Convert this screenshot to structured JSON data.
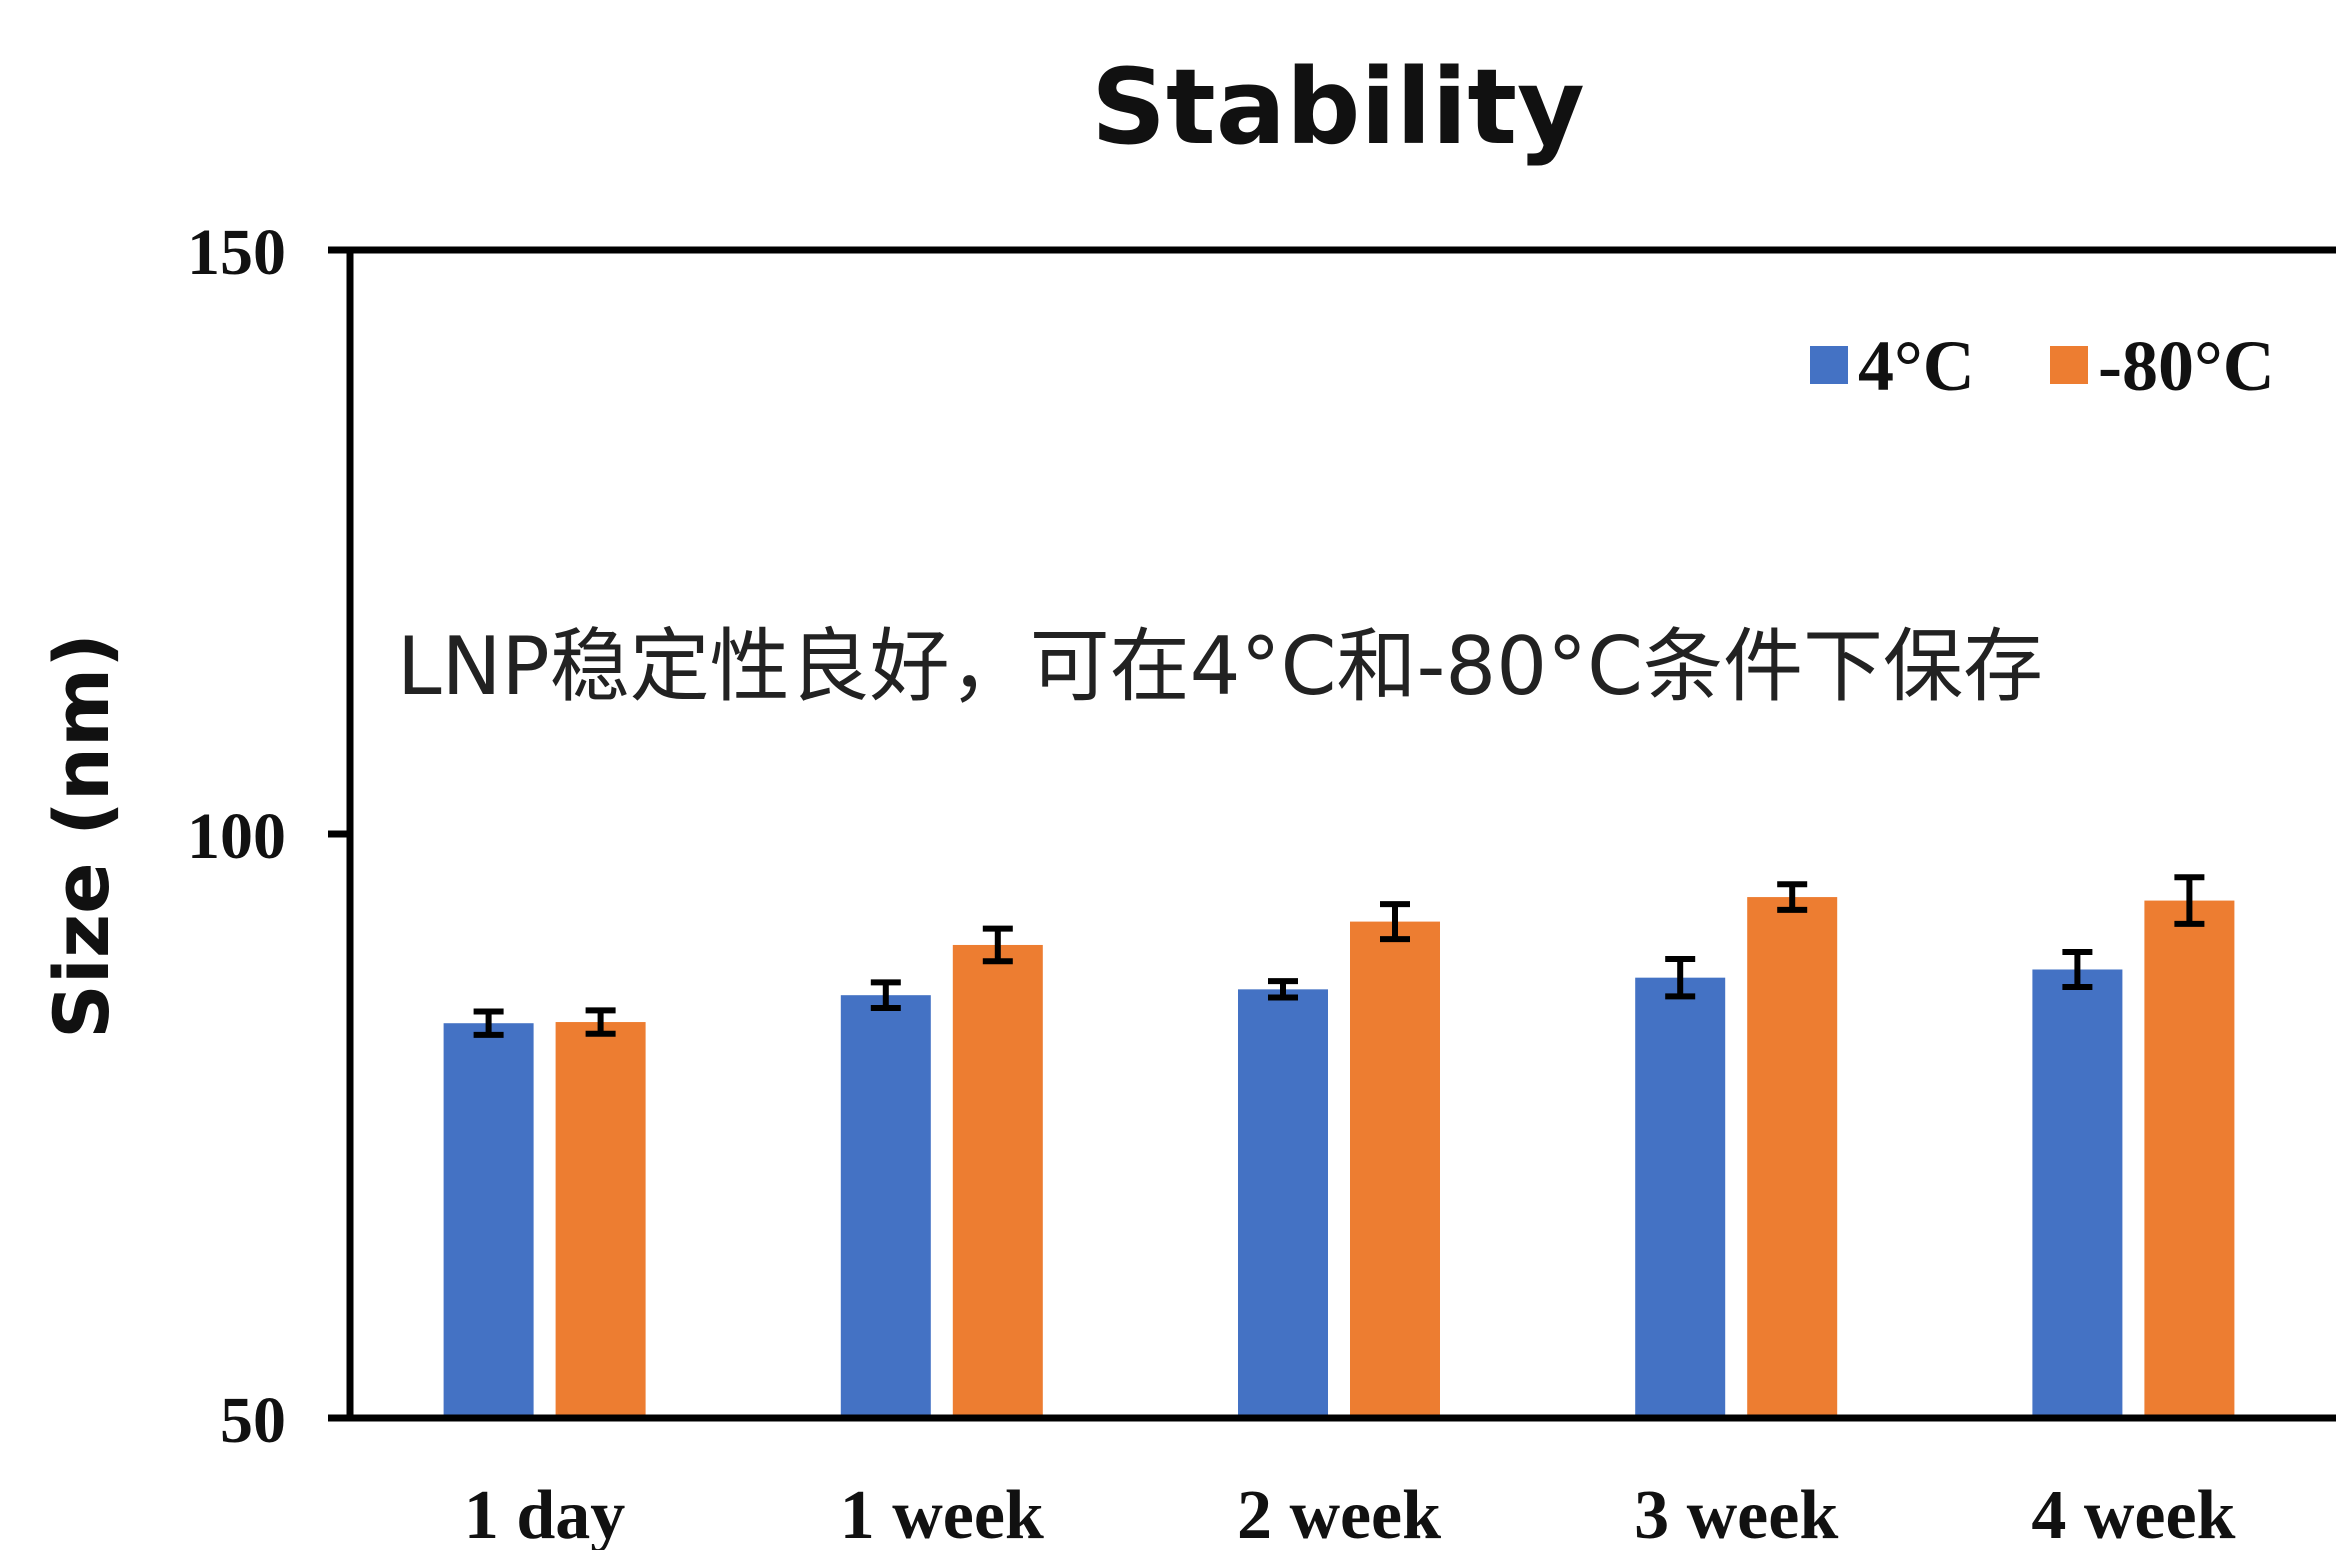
{
  "chart_data": {
    "type": "bar",
    "title": "Stability",
    "xlabel": "",
    "ylabel": "Size (nm)",
    "ylim": [
      50,
      150
    ],
    "yticks": [
      50,
      100,
      150
    ],
    "grid": false,
    "legend_position": "top-right",
    "categories": [
      "1 day",
      "1 week",
      "2 week",
      "3 week",
      "4 week"
    ],
    "series": [
      {
        "name": "4°C",
        "color": "#4472c4",
        "values": [
          83.8,
          86.2,
          86.7,
          87.7,
          88.4
        ],
        "errors": [
          1.0,
          1.1,
          0.7,
          1.6,
          1.5
        ]
      },
      {
        "name": "-80°C",
        "color": "#ed7d31",
        "values": [
          83.9,
          90.5,
          92.5,
          94.6,
          94.3
        ],
        "errors": [
          1.0,
          1.4,
          1.5,
          1.1,
          2.0
        ]
      }
    ],
    "annotations": [
      "LNP稳定性良好，可在4°C和-80°C条件下保存"
    ]
  }
}
